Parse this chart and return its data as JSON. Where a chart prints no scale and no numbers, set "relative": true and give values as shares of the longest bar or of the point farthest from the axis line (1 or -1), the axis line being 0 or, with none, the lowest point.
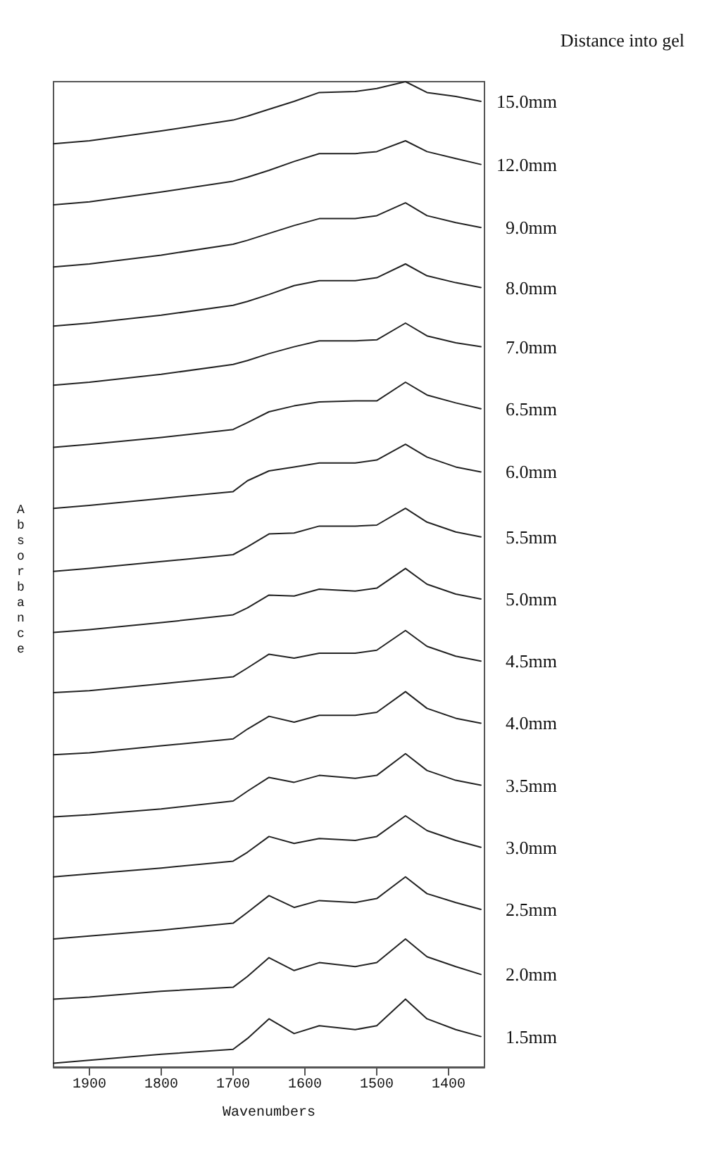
{
  "chart_data": {
    "type": "line",
    "relative": true,
    "xlabel": "Wavenumbers",
    "ylabel": "Absorbance",
    "legend_title": "Distance into gel",
    "legend": false,
    "grid": false,
    "marker": "none",
    "line_style": "solid",
    "x": [
      1950,
      1900,
      1800,
      1700,
      1680,
      1650,
      1615,
      1580,
      1530,
      1500,
      1460,
      1430,
      1390,
      1355
    ],
    "xlim": [
      1950,
      1350
    ],
    "xticks": [
      1900,
      1800,
      1700,
      1600,
      1500,
      1400
    ],
    "series": [
      {
        "name": "15.0mm",
        "color": "#222222",
        "values": [
          0.937,
          0.94,
          0.95,
          0.961,
          0.965,
          0.972,
          0.98,
          0.989,
          0.99,
          0.993,
          1.0,
          0.989,
          0.985,
          0.98
        ]
      },
      {
        "name": "12.0mm",
        "color": "#222222",
        "values": [
          0.875,
          0.878,
          0.888,
          0.899,
          0.903,
          0.91,
          0.919,
          0.927,
          0.927,
          0.929,
          0.94,
          0.929,
          0.922,
          0.916
        ]
      },
      {
        "name": "9.0mm",
        "color": "#222222",
        "values": [
          0.812,
          0.815,
          0.824,
          0.835,
          0.839,
          0.846,
          0.854,
          0.861,
          0.861,
          0.864,
          0.877,
          0.864,
          0.857,
          0.852
        ]
      },
      {
        "name": "8.0mm",
        "color": "#222222",
        "values": [
          0.752,
          0.755,
          0.763,
          0.773,
          0.777,
          0.784,
          0.793,
          0.798,
          0.798,
          0.801,
          0.815,
          0.803,
          0.796,
          0.791
        ]
      },
      {
        "name": "7.0mm",
        "color": "#222222",
        "values": [
          0.692,
          0.695,
          0.703,
          0.713,
          0.717,
          0.724,
          0.731,
          0.737,
          0.737,
          0.738,
          0.755,
          0.742,
          0.735,
          0.731
        ]
      },
      {
        "name": "6.5mm",
        "color": "#222222",
        "values": [
          0.629,
          0.632,
          0.639,
          0.647,
          0.654,
          0.665,
          0.671,
          0.675,
          0.676,
          0.676,
          0.695,
          0.682,
          0.674,
          0.668
        ]
      },
      {
        "name": "6.0mm",
        "color": "#222222",
        "values": [
          0.567,
          0.57,
          0.577,
          0.584,
          0.595,
          0.605,
          0.609,
          0.613,
          0.613,
          0.616,
          0.632,
          0.619,
          0.609,
          0.604
        ]
      },
      {
        "name": "5.5mm",
        "color": "#222222",
        "values": [
          0.503,
          0.506,
          0.513,
          0.52,
          0.528,
          0.541,
          0.542,
          0.549,
          0.549,
          0.55,
          0.567,
          0.553,
          0.543,
          0.538
        ]
      },
      {
        "name": "5.0mm",
        "color": "#222222",
        "values": [
          0.441,
          0.444,
          0.451,
          0.459,
          0.466,
          0.479,
          0.478,
          0.485,
          0.483,
          0.486,
          0.506,
          0.49,
          0.48,
          0.475
        ]
      },
      {
        "name": "4.5mm",
        "color": "#222222",
        "values": [
          0.38,
          0.382,
          0.389,
          0.396,
          0.405,
          0.419,
          0.415,
          0.42,
          0.42,
          0.423,
          0.443,
          0.427,
          0.417,
          0.412
        ]
      },
      {
        "name": "4.0mm",
        "color": "#222222",
        "values": [
          0.317,
          0.319,
          0.326,
          0.333,
          0.343,
          0.356,
          0.35,
          0.357,
          0.357,
          0.36,
          0.381,
          0.364,
          0.354,
          0.349
        ]
      },
      {
        "name": "3.5mm",
        "color": "#222222",
        "values": [
          0.254,
          0.256,
          0.262,
          0.27,
          0.28,
          0.294,
          0.289,
          0.296,
          0.293,
          0.296,
          0.318,
          0.301,
          0.291,
          0.286
        ]
      },
      {
        "name": "3.0mm",
        "color": "#222222",
        "values": [
          0.193,
          0.196,
          0.202,
          0.209,
          0.218,
          0.234,
          0.227,
          0.232,
          0.23,
          0.234,
          0.255,
          0.24,
          0.23,
          0.223
        ]
      },
      {
        "name": "2.5mm",
        "color": "#222222",
        "values": [
          0.13,
          0.133,
          0.139,
          0.146,
          0.157,
          0.174,
          0.162,
          0.169,
          0.167,
          0.171,
          0.193,
          0.176,
          0.167,
          0.16
        ]
      },
      {
        "name": "2.0mm",
        "color": "#222222",
        "values": [
          0.069,
          0.071,
          0.077,
          0.081,
          0.092,
          0.111,
          0.098,
          0.106,
          0.102,
          0.106,
          0.13,
          0.112,
          0.102,
          0.094
        ]
      },
      {
        "name": "1.5mm",
        "color": "#222222",
        "values": [
          0.004,
          0.007,
          0.013,
          0.018,
          0.029,
          0.049,
          0.034,
          0.042,
          0.038,
          0.042,
          0.069,
          0.049,
          0.038,
          0.031
        ]
      }
    ]
  }
}
